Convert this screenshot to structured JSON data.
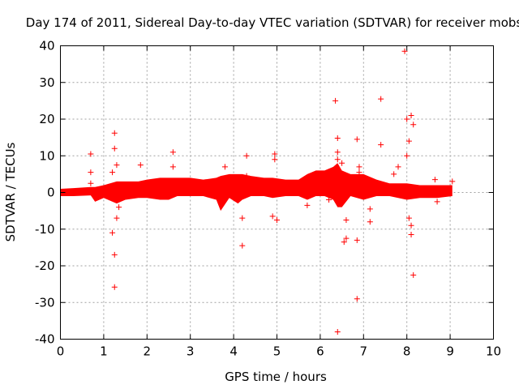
{
  "chart_data": {
    "type": "scatter",
    "title": "Day 174 of 2011, Sidereal Day-to-day VTEC variation (SDTVAR) for receiver mobs",
    "xlabel": "GPS time / hours",
    "ylabel": "SDTVAR / TECUs",
    "xlim": [
      0,
      10
    ],
    "ylim": [
      -40,
      40
    ],
    "xticks": [
      0,
      1,
      2,
      3,
      4,
      5,
      6,
      7,
      8,
      9,
      10
    ],
    "yticks": [
      -40,
      -30,
      -20,
      -10,
      0,
      10,
      20,
      30,
      40
    ],
    "grid": true,
    "marker": "+",
    "color": "#ff0000",
    "dense_band": [
      [
        0.0,
        -1.0,
        1.0
      ],
      [
        0.3,
        -1.0,
        1.2
      ],
      [
        0.7,
        -0.8,
        1.5
      ],
      [
        0.8,
        -2.5,
        1.5
      ],
      [
        1.0,
        -1.5,
        2.0
      ],
      [
        1.3,
        -3.0,
        3.0
      ],
      [
        1.5,
        -2.0,
        3.0
      ],
      [
        1.8,
        -1.5,
        3.0
      ],
      [
        2.0,
        -1.5,
        3.5
      ],
      [
        2.3,
        -2.0,
        4.0
      ],
      [
        2.5,
        -2.0,
        4.0
      ],
      [
        2.7,
        -1.0,
        4.0
      ],
      [
        3.0,
        -1.0,
        4.0
      ],
      [
        3.3,
        -1.0,
        3.5
      ],
      [
        3.6,
        -2.0,
        4.0
      ],
      [
        3.7,
        -5.0,
        4.5
      ],
      [
        3.9,
        -1.5,
        5.0
      ],
      [
        4.1,
        -3.0,
        5.0
      ],
      [
        4.2,
        -2.0,
        5.0
      ],
      [
        4.4,
        -1.0,
        4.5
      ],
      [
        4.7,
        -1.0,
        4.0
      ],
      [
        4.9,
        -1.5,
        4.0
      ],
      [
        5.2,
        -1.0,
        3.5
      ],
      [
        5.5,
        -1.0,
        3.5
      ],
      [
        5.7,
        -2.0,
        5.0
      ],
      [
        5.9,
        -1.0,
        6.0
      ],
      [
        6.1,
        -1.0,
        6.0
      ],
      [
        6.3,
        -2.0,
        7.0
      ],
      [
        6.4,
        -4.0,
        8.0
      ],
      [
        6.5,
        -4.0,
        6.0
      ],
      [
        6.7,
        -1.0,
        5.0
      ],
      [
        7.0,
        -2.0,
        5.0
      ],
      [
        7.3,
        -1.0,
        3.5
      ],
      [
        7.6,
        -1.0,
        2.5
      ],
      [
        8.0,
        -2.0,
        2.5
      ],
      [
        8.3,
        -1.5,
        2.0
      ],
      [
        8.7,
        -1.5,
        2.0
      ],
      [
        9.05,
        -1.0,
        2.0
      ]
    ],
    "outliers": [
      [
        0.7,
        10.5
      ],
      [
        0.7,
        5.5
      ],
      [
        0.7,
        2.5
      ],
      [
        1.2,
        5.5
      ],
      [
        1.2,
        -11.0
      ],
      [
        1.25,
        16.2
      ],
      [
        1.25,
        12.0
      ],
      [
        1.25,
        -17.0
      ],
      [
        1.25,
        -25.8
      ],
      [
        1.3,
        7.5
      ],
      [
        1.3,
        -7.0
      ],
      [
        1.35,
        -4.0
      ],
      [
        1.85,
        7.5
      ],
      [
        2.6,
        11.0
      ],
      [
        2.6,
        7.0
      ],
      [
        3.8,
        7.0
      ],
      [
        4.2,
        -7.0
      ],
      [
        4.2,
        -14.5
      ],
      [
        4.3,
        10.0
      ],
      [
        4.3,
        4.5
      ],
      [
        4.9,
        -6.5
      ],
      [
        4.95,
        10.5
      ],
      [
        4.95,
        9.0
      ],
      [
        5.0,
        -7.5
      ],
      [
        5.7,
        -3.5
      ],
      [
        6.2,
        -2.0
      ],
      [
        6.35,
        25.0
      ],
      [
        6.4,
        14.8
      ],
      [
        6.4,
        11.0
      ],
      [
        6.4,
        9.0
      ],
      [
        6.4,
        -38.0
      ],
      [
        6.5,
        8.0
      ],
      [
        6.55,
        -13.5
      ],
      [
        6.6,
        -7.5
      ],
      [
        6.6,
        -12.5
      ],
      [
        6.85,
        14.5
      ],
      [
        6.85,
        -13.0
      ],
      [
        6.85,
        -29.0
      ],
      [
        6.9,
        7.0
      ],
      [
        6.9,
        5.5
      ],
      [
        7.15,
        -4.5
      ],
      [
        7.15,
        -8.0
      ],
      [
        7.4,
        25.5
      ],
      [
        7.4,
        13.0
      ],
      [
        7.8,
        7.0
      ],
      [
        7.7,
        5.0
      ],
      [
        7.95,
        38.5
      ],
      [
        8.0,
        10.0
      ],
      [
        8.0,
        20.0
      ],
      [
        8.05,
        14.0
      ],
      [
        8.05,
        -7.0
      ],
      [
        8.1,
        -11.5
      ],
      [
        8.1,
        -9.0
      ],
      [
        8.1,
        21.0
      ],
      [
        8.15,
        18.5
      ],
      [
        8.15,
        -22.5
      ],
      [
        8.65,
        3.5
      ],
      [
        8.7,
        -2.5
      ],
      [
        9.05,
        3.0
      ]
    ]
  }
}
